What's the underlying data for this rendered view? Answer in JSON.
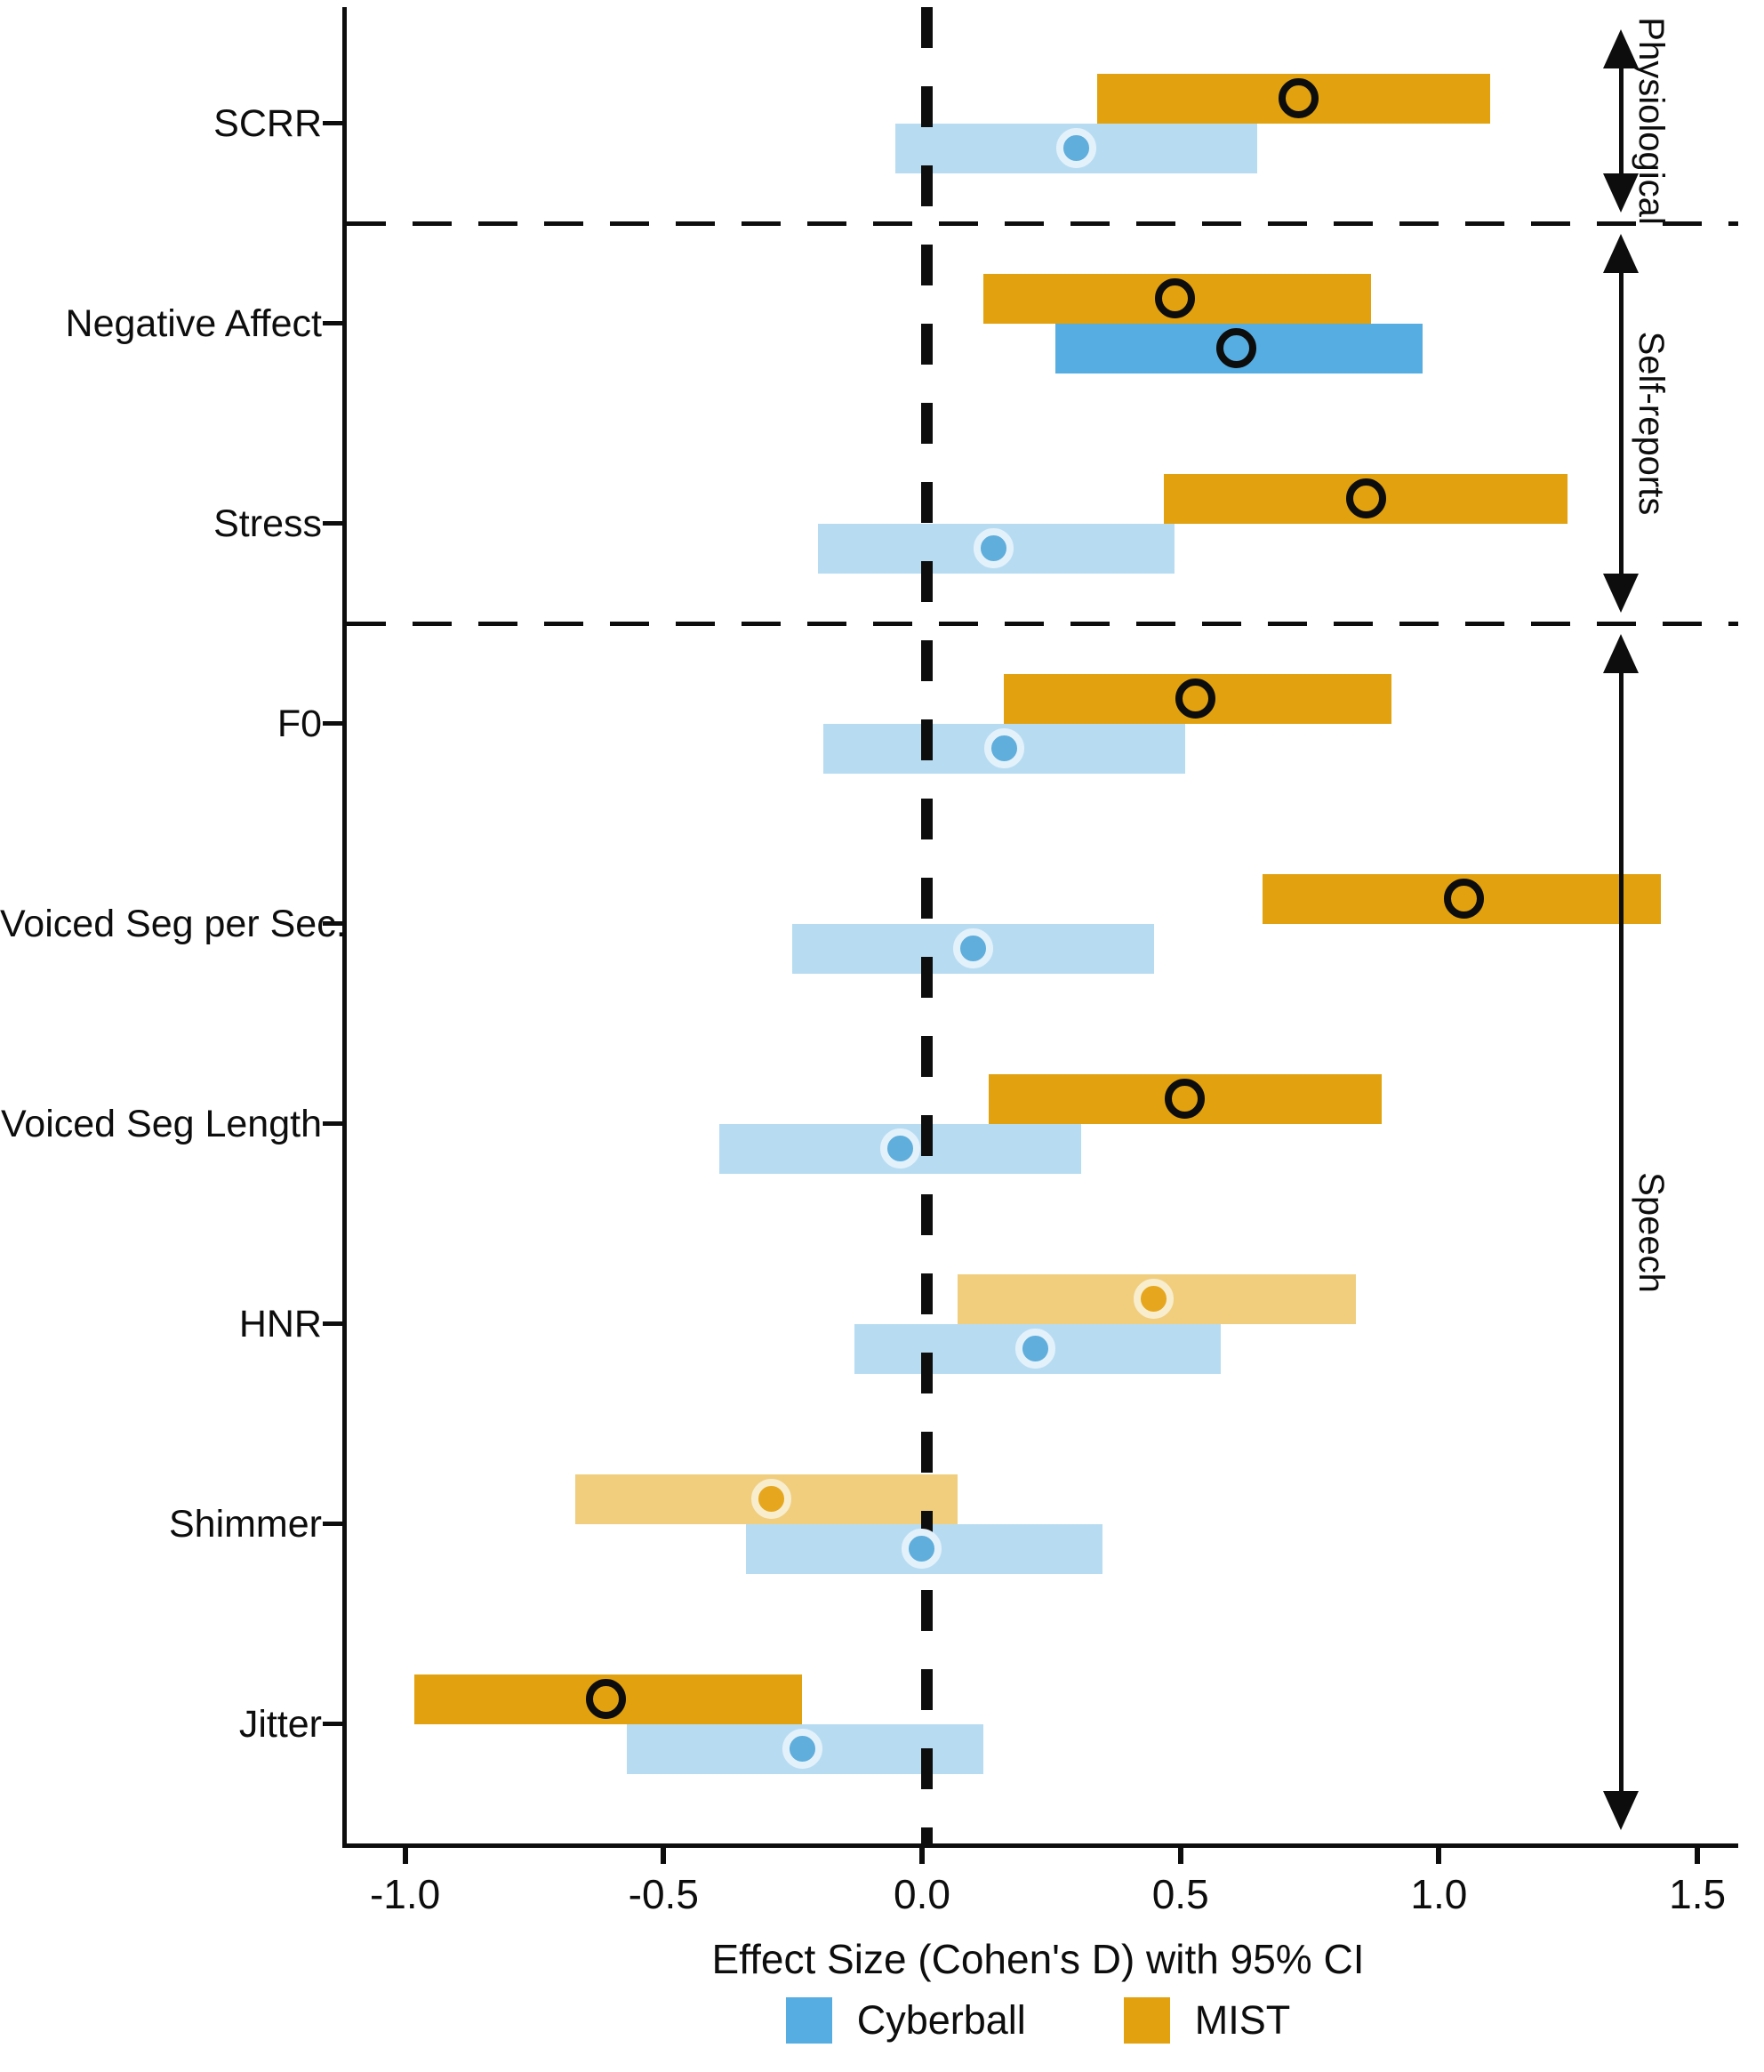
{
  "chart_data": {
    "type": "bar",
    "subtype": "horizontal-forest-plot-ci",
    "title": "",
    "xlabel": "Effect Size (Cohen's D) with 95% CI",
    "categories": [
      "SCRR",
      "Negative Affect",
      "Stress",
      "F0",
      "Voiced Seg per Sec.",
      "Voiced Seg Length",
      "HNR",
      "Shimmer",
      "Jitter"
    ],
    "xlim": [
      -1.12,
      1.57
    ],
    "x_ticks": [
      -1.0,
      -0.5,
      0.0,
      0.5,
      1.0,
      1.5
    ],
    "x_tick_labels": [
      "-1.0",
      "-0.5",
      "0.0",
      "0.5",
      "1.0",
      "1.5"
    ],
    "zero_reference_line": 0.0,
    "grid": false,
    "legend_position": "bottom",
    "legend_order": [
      "Cyberball",
      "MIST"
    ],
    "series": [
      {
        "name": "MIST",
        "position": "above",
        "color": "#E2A10E",
        "muted_color": "#F0CE7E",
        "marker_fill": "#E6A71E",
        "marker_ring": "#F8EDCC",
        "values": [
          {
            "low": 0.33,
            "high": 1.09,
            "point": 0.72,
            "muted": false
          },
          {
            "low": 0.11,
            "high": 0.86,
            "point": 0.48,
            "muted": false
          },
          {
            "low": 0.46,
            "high": 1.24,
            "point": 0.85,
            "muted": false
          },
          {
            "low": 0.15,
            "high": 0.9,
            "point": 0.52,
            "muted": false
          },
          {
            "low": 0.65,
            "high": 1.42,
            "point": 1.04,
            "muted": false
          },
          {
            "low": 0.12,
            "high": 0.88,
            "point": 0.5,
            "muted": false
          },
          {
            "low": 0.06,
            "high": 0.83,
            "point": 0.44,
            "muted": true
          },
          {
            "low": -0.68,
            "high": 0.06,
            "point": -0.3,
            "muted": true
          },
          {
            "low": -0.99,
            "high": -0.24,
            "point": -0.62,
            "muted": false
          }
        ]
      },
      {
        "name": "Cyberball",
        "position": "below",
        "color": "#55ADE2",
        "muted_color": "#B7DCF2",
        "marker_fill": "#5FAEDC",
        "marker_ring": "#E3F1FB",
        "values": [
          {
            "low": -0.06,
            "high": 0.64,
            "point": 0.29,
            "muted": true
          },
          {
            "low": 0.25,
            "high": 0.96,
            "point": 0.6,
            "muted": false
          },
          {
            "low": -0.21,
            "high": 0.48,
            "point": 0.13,
            "muted": true
          },
          {
            "low": -0.2,
            "high": 0.5,
            "point": 0.15,
            "muted": true
          },
          {
            "low": -0.26,
            "high": 0.44,
            "point": 0.09,
            "muted": true
          },
          {
            "low": -0.4,
            "high": 0.3,
            "point": -0.05,
            "muted": true
          },
          {
            "low": -0.14,
            "high": 0.57,
            "point": 0.21,
            "muted": true
          },
          {
            "low": -0.35,
            "high": 0.34,
            "point": -0.01,
            "muted": true
          },
          {
            "low": -0.58,
            "high": 0.11,
            "point": -0.24,
            "muted": true
          }
        ]
      }
    ],
    "groups": [
      {
        "label": "Physiological",
        "first_row": 0,
        "last_row": 0
      },
      {
        "label": "Self-reports",
        "first_row": 1,
        "last_row": 2
      },
      {
        "label": "Speech",
        "first_row": 3,
        "last_row": 8
      }
    ]
  }
}
